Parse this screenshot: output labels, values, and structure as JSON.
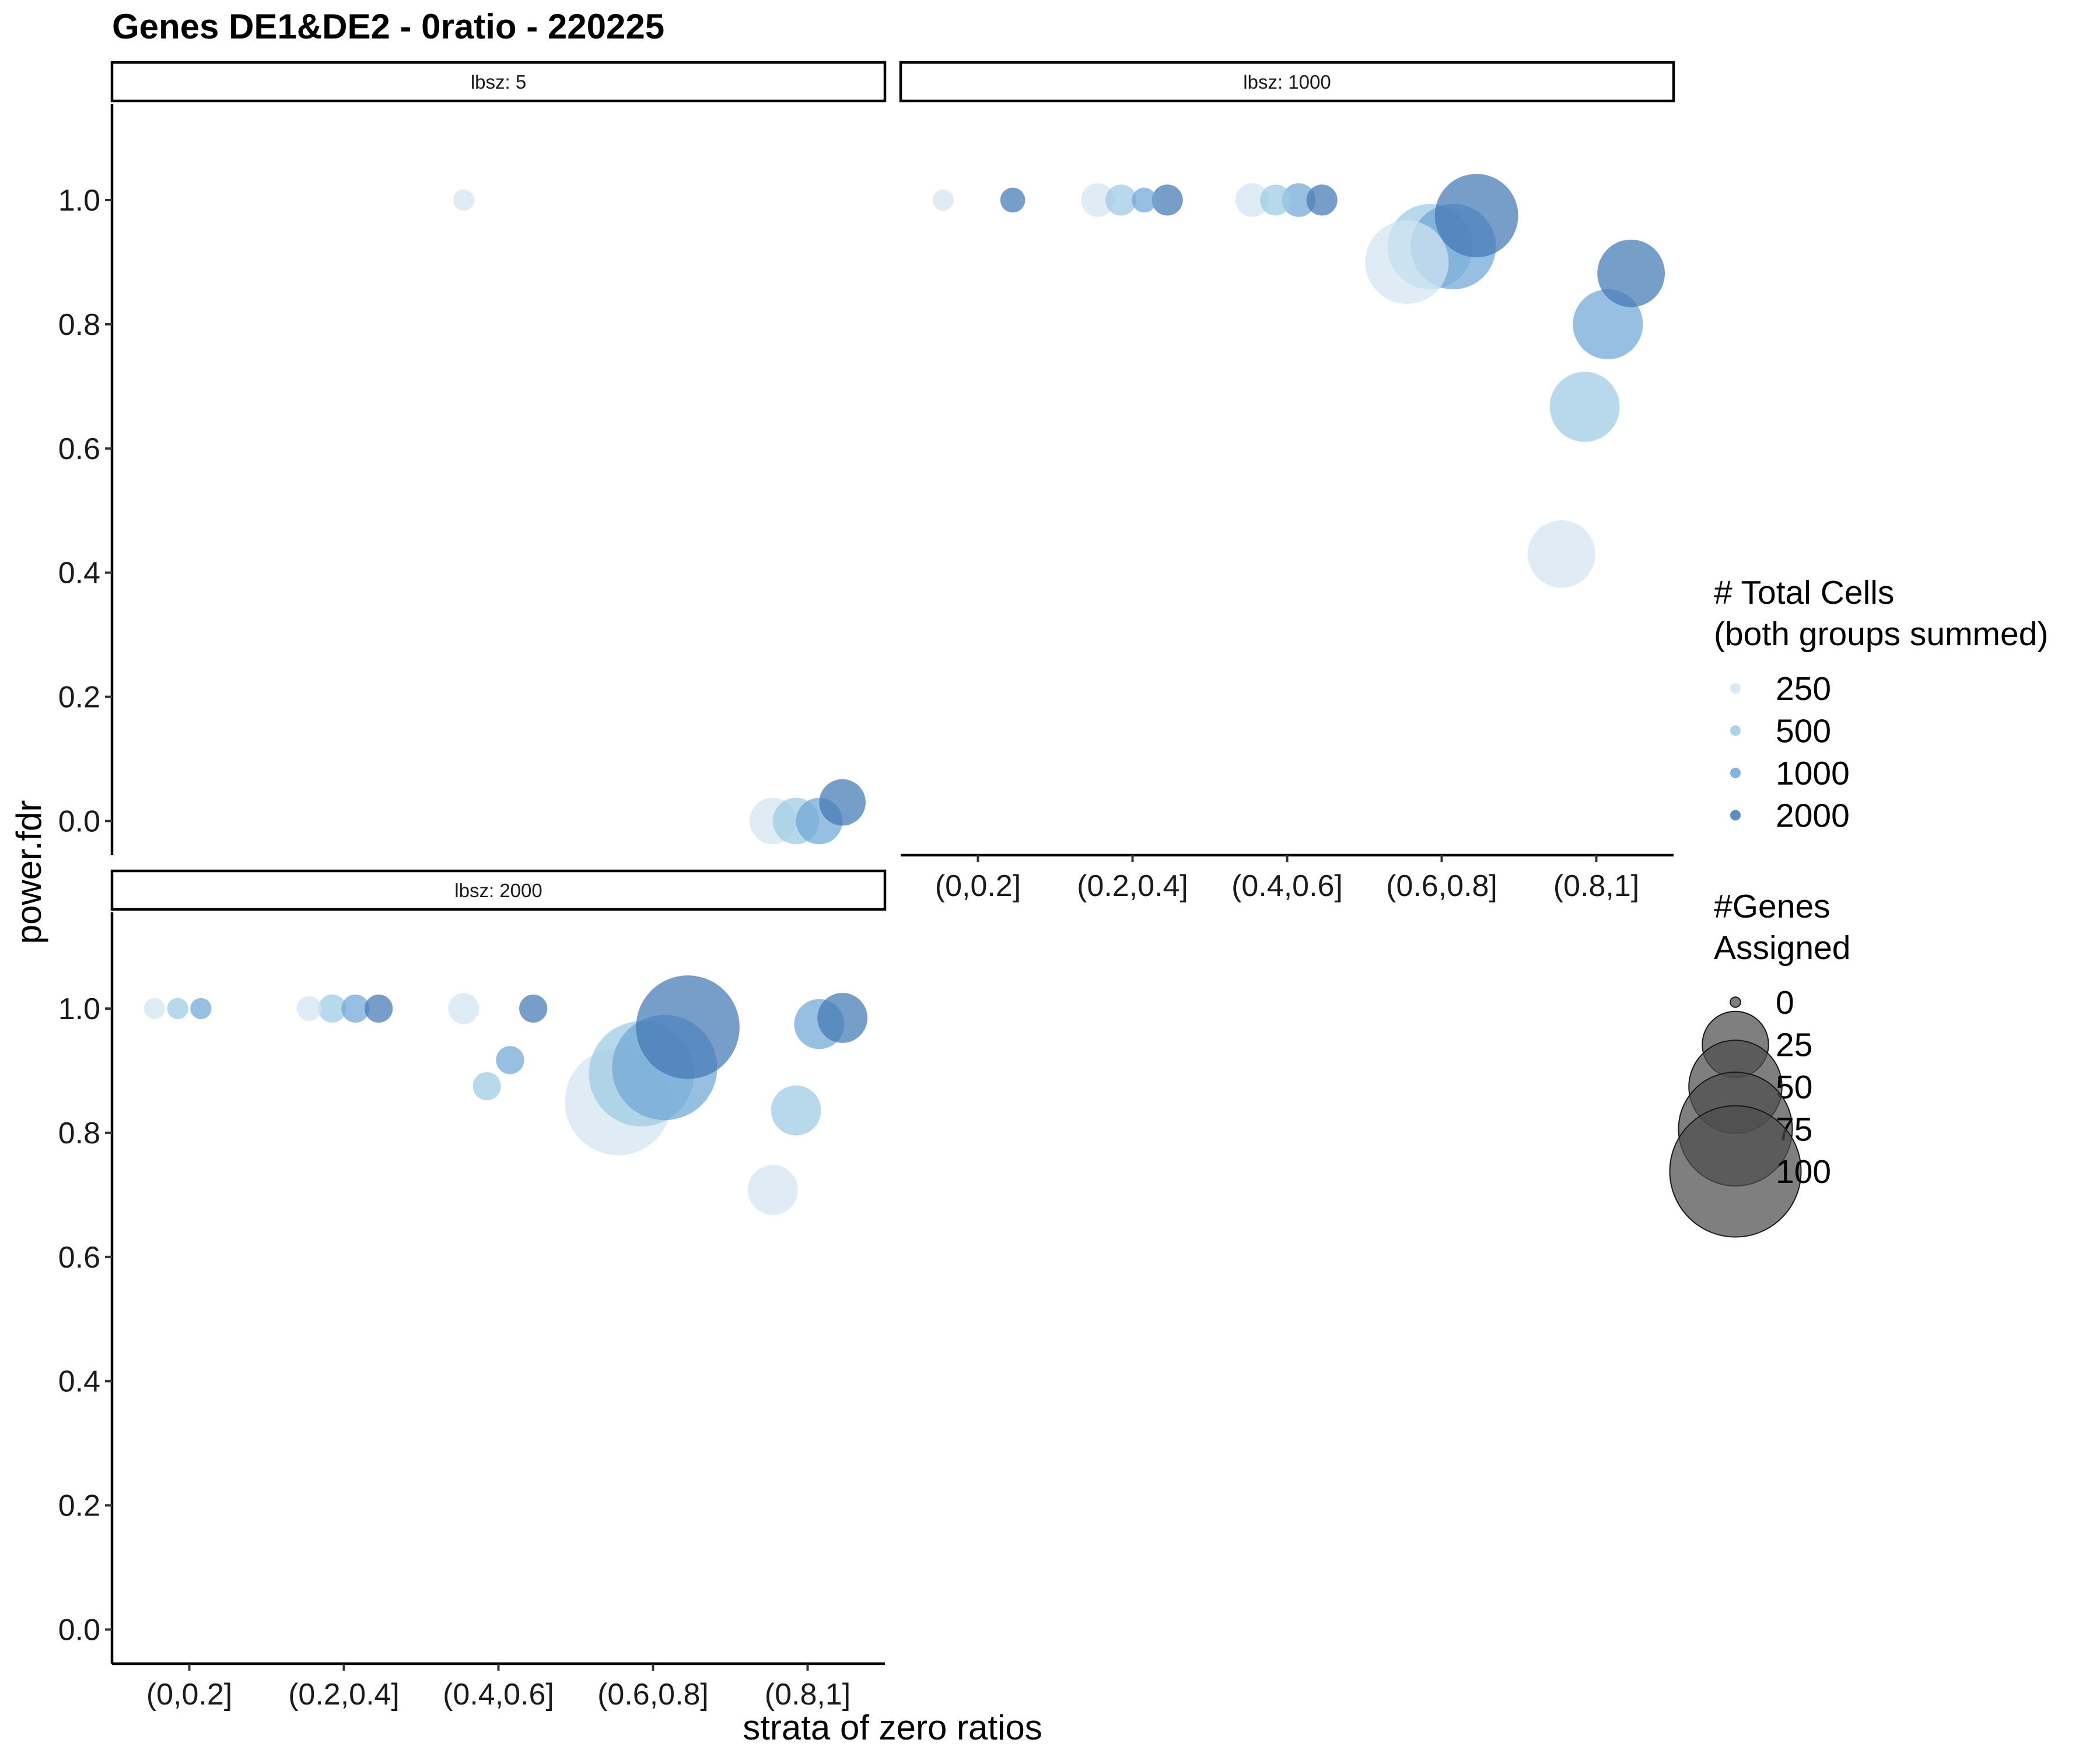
{
  "chart_data": {
    "type": "scatter",
    "title": "Genes DE1&DE2 - 0ratio - 220225",
    "xlabel": "strata of zero ratios",
    "ylabel": "power.fdr",
    "categories": [
      "(0,0.2]",
      "(0.2,0.4]",
      "(0.4,0.6]",
      "(0.6,0.8]",
      "(0.8,1]"
    ],
    "y_ticks": [
      "0.0",
      "0.2",
      "0.4",
      "0.6",
      "0.8",
      "1.0"
    ],
    "grid": false,
    "panels": [
      {
        "label": "lbsz: 5",
        "points": [
          {
            "category": "(0.4,0.6]",
            "cells": 250,
            "genes": 2,
            "y": 1.0
          },
          {
            "category": "(0.8,1]",
            "cells": 250,
            "genes": 12,
            "y": 0.0
          },
          {
            "category": "(0.8,1]",
            "cells": 500,
            "genes": 12,
            "y": 0.0
          },
          {
            "category": "(0.8,1]",
            "cells": 1000,
            "genes": 12,
            "y": 0.0
          },
          {
            "category": "(0.8,1]",
            "cells": 2000,
            "genes": 12,
            "y": 0.03
          }
        ]
      },
      {
        "label": "lbsz: 1000",
        "points": [
          {
            "category": "(0,0.2]",
            "cells": 250,
            "genes": 2,
            "y": 1.0
          },
          {
            "category": "(0,0.2]",
            "cells": 2000,
            "genes": 3,
            "y": 1.0
          },
          {
            "category": "(0.2,0.4]",
            "cells": 250,
            "genes": 6,
            "y": 1.0
          },
          {
            "category": "(0.2,0.4]",
            "cells": 500,
            "genes": 5,
            "y": 1.0
          },
          {
            "category": "(0.2,0.4]",
            "cells": 1000,
            "genes": 3,
            "y": 1.0
          },
          {
            "category": "(0.2,0.4]",
            "cells": 2000,
            "genes": 5,
            "y": 1.0
          },
          {
            "category": "(0.4,0.6]",
            "cells": 250,
            "genes": 6,
            "y": 1.0
          },
          {
            "category": "(0.4,0.6]",
            "cells": 500,
            "genes": 5,
            "y": 1.0
          },
          {
            "category": "(0.4,0.6]",
            "cells": 1000,
            "genes": 6,
            "y": 1.0
          },
          {
            "category": "(0.4,0.6]",
            "cells": 2000,
            "genes": 5,
            "y": 1.0
          },
          {
            "category": "(0.6,0.8]",
            "cells": 250,
            "genes": 40,
            "y": 0.9
          },
          {
            "category": "(0.6,0.8]",
            "cells": 500,
            "genes": 42,
            "y": 0.925
          },
          {
            "category": "(0.6,0.8]",
            "cells": 1000,
            "genes": 42,
            "y": 0.925
          },
          {
            "category": "(0.6,0.8]",
            "cells": 2000,
            "genes": 40,
            "y": 0.975
          },
          {
            "category": "(0.8,1]",
            "cells": 250,
            "genes": 26,
            "y": 0.43
          },
          {
            "category": "(0.8,1]",
            "cells": 500,
            "genes": 28,
            "y": 0.667
          },
          {
            "category": "(0.8,1]",
            "cells": 1000,
            "genes": 28,
            "y": 0.8
          },
          {
            "category": "(0.8,1]",
            "cells": 2000,
            "genes": 26,
            "y": 0.882
          }
        ]
      },
      {
        "label": "lbsz: 2000",
        "points": [
          {
            "category": "(0,0.2]",
            "cells": 250,
            "genes": 2,
            "y": 1.0
          },
          {
            "category": "(0,0.2]",
            "cells": 500,
            "genes": 2,
            "y": 1.0
          },
          {
            "category": "(0,0.2]",
            "cells": 1000,
            "genes": 2,
            "y": 1.0
          },
          {
            "category": "(0.2,0.4]",
            "cells": 250,
            "genes": 3,
            "y": 1.0
          },
          {
            "category": "(0.2,0.4]",
            "cells": 500,
            "genes": 4,
            "y": 1.0
          },
          {
            "category": "(0.2,0.4]",
            "cells": 1000,
            "genes": 4,
            "y": 1.0
          },
          {
            "category": "(0.2,0.4]",
            "cells": 2000,
            "genes": 4,
            "y": 1.0
          },
          {
            "category": "(0.4,0.6]",
            "cells": 250,
            "genes": 5,
            "y": 1.0
          },
          {
            "category": "(0.4,0.6]",
            "cells": 500,
            "genes": 4,
            "y": 0.875
          },
          {
            "category": "(0.4,0.6]",
            "cells": 1000,
            "genes": 4,
            "y": 0.917
          },
          {
            "category": "(0.4,0.6]",
            "cells": 2000,
            "genes": 4,
            "y": 1.0
          },
          {
            "category": "(0.6,0.8]",
            "cells": 250,
            "genes": 66,
            "y": 0.85
          },
          {
            "category": "(0.6,0.8]",
            "cells": 500,
            "genes": 64,
            "y": 0.895
          },
          {
            "category": "(0.6,0.8]",
            "cells": 1000,
            "genes": 64,
            "y": 0.905
          },
          {
            "category": "(0.6,0.8]",
            "cells": 2000,
            "genes": 62,
            "y": 0.97
          },
          {
            "category": "(0.8,1]",
            "cells": 250,
            "genes": 14,
            "y": 0.708
          },
          {
            "category": "(0.8,1]",
            "cells": 500,
            "genes": 14,
            "y": 0.836
          },
          {
            "category": "(0.8,1]",
            "cells": 1000,
            "genes": 14,
            "y": 0.975
          },
          {
            "category": "(0.8,1]",
            "cells": 2000,
            "genes": 14,
            "y": 0.985
          }
        ]
      }
    ],
    "legend": {
      "position": "right",
      "color": {
        "title_lines": [
          "# Total Cells",
          "(both groups summed)"
        ],
        "items": [
          {
            "label": "250",
            "color": "#d3e4f1"
          },
          {
            "label": "500",
            "color": "#9dcae3"
          },
          {
            "label": "1000",
            "color": "#6fa6d6"
          },
          {
            "label": "2000",
            "color": "#4377b4"
          }
        ]
      },
      "size": {
        "title_lines": [
          "#Genes",
          "Assigned"
        ],
        "items": [
          {
            "label": "0",
            "value": 0
          },
          {
            "label": "25",
            "value": 25
          },
          {
            "label": "50",
            "value": 50
          },
          {
            "label": "75",
            "value": 75
          },
          {
            "label": "100",
            "value": 100
          }
        ]
      }
    }
  }
}
